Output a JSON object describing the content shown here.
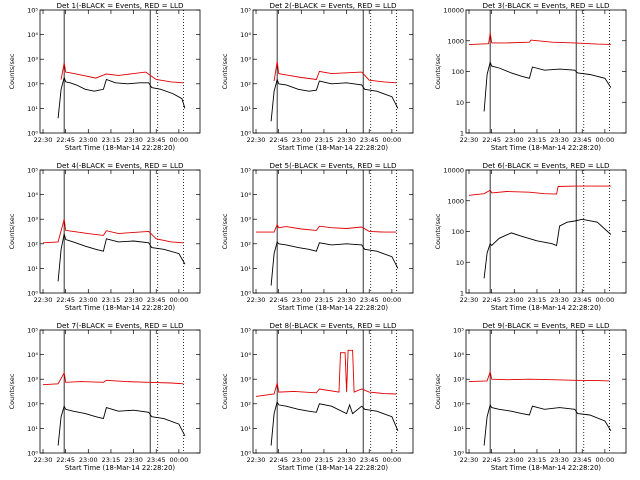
{
  "chart_data": [
    {
      "type": "line",
      "title": "Det 1(-BLACK = Events, RED = LLD",
      "xlabel": "Start Time (18-Mar-14 22:28:20)",
      "ylabel": "Counts/sec",
      "yscale": "log",
      "ylim": [
        1,
        100000
      ],
      "yticks": [
        "10⁰",
        "10¹",
        "10²",
        "10³",
        "10⁴",
        "10⁵"
      ],
      "xlim": [
        "22:28",
        "00:14"
      ],
      "xticks": [
        "22:30",
        "22:45",
        "23:00",
        "23:15",
        "23:30",
        "23:45",
        "00:00"
      ],
      "vlines_solid": [
        "22:44",
        "23:41"
      ],
      "vlines_dotted": [
        "23:46",
        "00:03"
      ],
      "grid": false,
      "series": [
        {
          "name": "Events",
          "color": "#000000",
          "x": [
            "22:40",
            "22:42",
            "22:44",
            "22:45",
            "22:48",
            "22:52",
            "22:58",
            "23:04",
            "23:10",
            "23:12",
            "23:18",
            "23:26",
            "23:34",
            "23:40",
            "23:42",
            "23:48",
            "23:56",
            "00:02",
            "00:04"
          ],
          "values": [
            4,
            60,
            180,
            120,
            110,
            90,
            60,
            50,
            60,
            150,
            110,
            100,
            110,
            110,
            70,
            60,
            40,
            25,
            10
          ]
        },
        {
          "name": "LLD",
          "color": "#e00000",
          "x": [
            "22:42",
            "22:44",
            "22:45",
            "22:48",
            "22:55",
            "23:05",
            "23:12",
            "23:20",
            "23:30",
            "23:38",
            "23:45",
            "23:55",
            "00:03"
          ],
          "values": [
            150,
            700,
            300,
            280,
            230,
            170,
            250,
            220,
            260,
            300,
            150,
            120,
            110
          ]
        }
      ]
    },
    {
      "type": "line",
      "title": "Det 2(-BLACK = Events, RED = LLD",
      "xlabel": "Start Time (18-Mar-14 22:28:20)",
      "ylabel": "Counts/sec",
      "yscale": "log",
      "ylim": [
        1,
        100000
      ],
      "yticks": [
        "10⁰",
        "10¹",
        "10²",
        "10³",
        "10⁴",
        "10⁵"
      ],
      "xlim": [
        "22:28",
        "00:14"
      ],
      "xticks": [
        "22:30",
        "22:45",
        "23:00",
        "23:15",
        "23:30",
        "23:45",
        "00:00"
      ],
      "vlines_solid": [
        "22:44",
        "23:41"
      ],
      "vlines_dotted": [
        "23:46",
        "00:03"
      ],
      "grid": false,
      "series": [
        {
          "name": "Events",
          "color": "#000000",
          "x": [
            "22:40",
            "22:42",
            "22:44",
            "22:45",
            "22:50",
            "22:58",
            "23:05",
            "23:10",
            "23:12",
            "23:20",
            "23:30",
            "23:40",
            "23:42",
            "23:50",
            "00:00",
            "00:04"
          ],
          "values": [
            3,
            50,
            150,
            100,
            90,
            60,
            50,
            55,
            130,
            100,
            110,
            90,
            60,
            50,
            30,
            10
          ]
        },
        {
          "name": "LLD",
          "color": "#e00000",
          "x": [
            "22:42",
            "22:44",
            "22:45",
            "22:50",
            "23:00",
            "23:10",
            "23:12",
            "23:20",
            "23:30",
            "23:40",
            "23:45",
            "23:55",
            "00:03"
          ],
          "values": [
            130,
            800,
            260,
            230,
            180,
            150,
            320,
            260,
            280,
            300,
            140,
            120,
            110
          ]
        }
      ]
    },
    {
      "type": "line",
      "title": "Det 3(-BLACK = Events, RED = LLD",
      "xlabel": "Start Time (18-Mar-14 22:28:20)",
      "ylabel": "Counts/sec",
      "yscale": "log",
      "ylim": [
        1,
        10000
      ],
      "yticks": [
        "1",
        "10",
        "100",
        "1000",
        "10000"
      ],
      "xlim": [
        "22:28",
        "00:14"
      ],
      "xticks": [
        "22:30",
        "22:45",
        "23:00",
        "23:15",
        "23:30",
        "23:45",
        "00:00"
      ],
      "vlines_solid": [
        "22:44",
        "23:41"
      ],
      "vlines_dotted": [
        "23:46",
        "00:03"
      ],
      "grid": false,
      "series": [
        {
          "name": "Events",
          "color": "#000000",
          "x": [
            "22:40",
            "22:42",
            "22:44",
            "22:45",
            "22:50",
            "22:58",
            "23:05",
            "23:10",
            "23:12",
            "23:20",
            "23:30",
            "23:40",
            "23:42",
            "23:50",
            "00:00",
            "00:04"
          ],
          "values": [
            5,
            80,
            200,
            150,
            130,
            90,
            70,
            60,
            140,
            110,
            120,
            110,
            90,
            80,
            60,
            30
          ]
        },
        {
          "name": "LLD",
          "color": "#e00000",
          "x": [
            "22:30",
            "22:43",
            "22:44",
            "22:45",
            "22:55",
            "23:10",
            "23:11",
            "23:25",
            "23:40",
            "23:55",
            "00:04"
          ],
          "values": [
            750,
            800,
            1800,
            850,
            850,
            900,
            1050,
            900,
            850,
            780,
            760
          ]
        }
      ]
    },
    {
      "type": "line",
      "title": "Det 4(-BLACK = Events, RED = LLD",
      "xlabel": "Start Time (18-Mar-14 22:28:20)",
      "ylabel": "Counts/sec",
      "yscale": "log",
      "ylim": [
        1,
        100000
      ],
      "yticks": [
        "10⁰",
        "10¹",
        "10²",
        "10³",
        "10⁴",
        "10⁵"
      ],
      "xlim": [
        "22:28",
        "00:14"
      ],
      "xticks": [
        "22:30",
        "22:45",
        "23:00",
        "23:15",
        "23:30",
        "23:45",
        "00:00"
      ],
      "vlines_solid": [
        "22:44",
        "23:41"
      ],
      "vlines_dotted": [
        "23:46",
        "00:03"
      ],
      "grid": false,
      "series": [
        {
          "name": "Events",
          "color": "#000000",
          "x": [
            "22:40",
            "22:42",
            "22:44",
            "22:45",
            "22:50",
            "22:58",
            "23:05",
            "23:10",
            "23:12",
            "23:20",
            "23:30",
            "23:40",
            "23:42",
            "23:50",
            "00:00",
            "00:04"
          ],
          "values": [
            3,
            60,
            250,
            150,
            120,
            80,
            60,
            50,
            160,
            120,
            130,
            110,
            70,
            60,
            40,
            15
          ]
        },
        {
          "name": "LLD",
          "color": "#e00000",
          "x": [
            "22:30",
            "22:40",
            "22:44",
            "22:45",
            "22:50",
            "23:00",
            "23:10",
            "23:12",
            "23:20",
            "23:30",
            "23:40",
            "23:45",
            "23:55",
            "00:03"
          ],
          "values": [
            110,
            120,
            1000,
            350,
            320,
            260,
            220,
            340,
            260,
            290,
            320,
            160,
            120,
            110
          ]
        }
      ]
    },
    {
      "type": "line",
      "title": "Det 5(-BLACK = Events, RED = LLD",
      "xlabel": "Start Time (18-Mar-14 22:28:20)",
      "ylabel": "Counts/sec",
      "yscale": "log",
      "ylim": [
        1,
        100000
      ],
      "yticks": [
        "10⁰",
        "10¹",
        "10²",
        "10³",
        "10⁴",
        "10⁵"
      ],
      "xlim": [
        "22:28",
        "00:14"
      ],
      "xticks": [
        "22:30",
        "22:45",
        "23:00",
        "23:15",
        "23:30",
        "23:45",
        "00:00"
      ],
      "vlines_solid": [
        "22:44",
        "23:41"
      ],
      "vlines_dotted": [
        "23:46",
        "00:03"
      ],
      "grid": false,
      "series": [
        {
          "name": "Events",
          "color": "#000000",
          "x": [
            "22:40",
            "22:42",
            "22:44",
            "22:45",
            "22:50",
            "22:58",
            "23:05",
            "23:10",
            "23:12",
            "23:20",
            "23:30",
            "23:40",
            "23:42",
            "23:50",
            "00:00",
            "00:04"
          ],
          "values": [
            2,
            40,
            120,
            100,
            90,
            70,
            60,
            50,
            110,
            90,
            100,
            90,
            60,
            50,
            30,
            10
          ]
        },
        {
          "name": "LLD",
          "color": "#e00000",
          "x": [
            "22:30",
            "22:42",
            "22:44",
            "22:45",
            "22:50",
            "23:00",
            "23:10",
            "23:12",
            "23:20",
            "23:30",
            "23:40",
            "23:45",
            "23:55",
            "00:03"
          ],
          "values": [
            300,
            300,
            600,
            450,
            500,
            400,
            350,
            520,
            450,
            420,
            480,
            320,
            300,
            300
          ]
        }
      ]
    },
    {
      "type": "line",
      "title": "Det 6(-BLACK = Events, RED = LLD",
      "xlabel": "Start Time (18-Mar-14 22:28:20)",
      "ylabel": "Counts/sec",
      "yscale": "log",
      "ylim": [
        1,
        10000
      ],
      "yticks": [
        "1",
        "10",
        "100",
        "1000",
        "10000"
      ],
      "xlim": [
        "22:28",
        "00:14"
      ],
      "xticks": [
        "22:30",
        "22:45",
        "23:00",
        "23:15",
        "23:30",
        "23:45",
        "00:00"
      ],
      "vlines_solid": [
        "22:44",
        "23:41"
      ],
      "vlines_dotted": [
        "23:46",
        "00:03"
      ],
      "grid": false,
      "series": [
        {
          "name": "Events",
          "color": "#000000",
          "x": [
            "22:40",
            "22:42",
            "22:44",
            "22:45",
            "22:50",
            "22:58",
            "23:05",
            "23:15",
            "23:25",
            "23:28",
            "23:30",
            "23:35",
            "23:40",
            "23:45",
            "23:55",
            "00:04"
          ],
          "values": [
            3,
            20,
            40,
            35,
            60,
            90,
            70,
            50,
            40,
            35,
            150,
            200,
            220,
            250,
            200,
            80
          ]
        },
        {
          "name": "LLD",
          "color": "#e00000",
          "x": [
            "22:30",
            "22:40",
            "22:44",
            "22:45",
            "22:55",
            "23:10",
            "23:20",
            "23:28",
            "23:29",
            "23:40",
            "23:55",
            "00:04"
          ],
          "values": [
            1500,
            1700,
            2200,
            1800,
            2000,
            1900,
            1700,
            1650,
            2900,
            3000,
            3000,
            3000
          ]
        }
      ]
    },
    {
      "type": "line",
      "title": "Det 7(-BLACK = Events, RED = LLD",
      "xlabel": "Start Time (18-Mar-14 22:28:20)",
      "ylabel": "Counts/sec",
      "yscale": "log",
      "ylim": [
        1,
        100000
      ],
      "yticks": [
        "10⁰",
        "10¹",
        "10²",
        "10³",
        "10⁴",
        "10⁵"
      ],
      "xlim": [
        "22:28",
        "00:14"
      ],
      "xticks": [
        "22:30",
        "22:45",
        "23:00",
        "23:15",
        "23:30",
        "23:45",
        "00:00"
      ],
      "vlines_solid": [
        "22:44",
        "23:41"
      ],
      "vlines_dotted": [
        "23:46",
        "00:03"
      ],
      "grid": false,
      "series": [
        {
          "name": "Events",
          "color": "#000000",
          "x": [
            "22:40",
            "22:42",
            "22:44",
            "22:45",
            "22:50",
            "22:58",
            "23:05",
            "23:10",
            "23:12",
            "23:20",
            "23:30",
            "23:40",
            "23:42",
            "23:50",
            "00:00",
            "00:04"
          ],
          "values": [
            2,
            30,
            80,
            60,
            50,
            40,
            30,
            25,
            70,
            50,
            55,
            45,
            30,
            25,
            15,
            5
          ]
        },
        {
          "name": "LLD",
          "color": "#e00000",
          "x": [
            "22:30",
            "22:40",
            "22:44",
            "22:45",
            "22:55",
            "23:10",
            "23:12",
            "23:25",
            "23:40",
            "23:55",
            "00:03"
          ],
          "values": [
            600,
            650,
            1800,
            750,
            800,
            750,
            900,
            800,
            750,
            700,
            650
          ]
        }
      ]
    },
    {
      "type": "line",
      "title": "Det 8(-BLACK = Events, RED = LLD",
      "xlabel": "Start Time (18-Mar-14 22:28:20)",
      "ylabel": "Counts/sec",
      "yscale": "log",
      "ylim": [
        1,
        100000
      ],
      "yticks": [
        "10⁰",
        "10¹",
        "10²",
        "10³",
        "10⁴",
        "10⁵"
      ],
      "xlim": [
        "22:28",
        "00:14"
      ],
      "xticks": [
        "22:30",
        "22:45",
        "23:00",
        "23:15",
        "23:30",
        "23:45",
        "00:00"
      ],
      "vlines_solid": [
        "22:44",
        "23:41"
      ],
      "vlines_dotted": [
        "23:46",
        "00:03"
      ],
      "grid": false,
      "series": [
        {
          "name": "Events",
          "color": "#000000",
          "x": [
            "22:40",
            "22:42",
            "22:44",
            "22:45",
            "22:50",
            "22:58",
            "23:05",
            "23:10",
            "23:12",
            "23:20",
            "23:30",
            "23:32",
            "23:34",
            "23:40",
            "23:42",
            "23:50",
            "00:00",
            "00:04"
          ],
          "values": [
            2,
            40,
            120,
            90,
            80,
            60,
            50,
            45,
            100,
            80,
            40,
            90,
            40,
            80,
            60,
            50,
            30,
            8
          ]
        },
        {
          "name": "LLD",
          "color": "#e00000",
          "x": [
            "22:30",
            "22:42",
            "22:44",
            "22:45",
            "22:55",
            "23:10",
            "23:12",
            "23:25",
            "23:26",
            "23:29",
            "23:30",
            "23:31",
            "23:34",
            "23:35",
            "23:40",
            "23:45",
            "23:55",
            "00:03"
          ],
          "values": [
            200,
            250,
            700,
            300,
            320,
            280,
            400,
            300,
            12000,
            12000,
            300,
            15000,
            15000,
            300,
            400,
            300,
            260,
            250
          ]
        }
      ]
    },
    {
      "type": "line",
      "title": "Det 9(-BLACK = Events, RED = LLD",
      "xlabel": "Start Time (18-Mar-14 22:28:20)",
      "ylabel": "Counts/sec",
      "yscale": "log",
      "ylim": [
        1,
        100000
      ],
      "yticks": [
        "10⁰",
        "10¹",
        "10²",
        "10³",
        "10⁴",
        "10⁵"
      ],
      "xlim": [
        "22:28",
        "00:14"
      ],
      "xticks": [
        "22:30",
        "22:45",
        "23:00",
        "23:15",
        "23:30",
        "23:45",
        "00:00"
      ],
      "vlines_solid": [
        "22:44",
        "23:41"
      ],
      "vlines_dotted": [
        "23:46",
        "00:03"
      ],
      "grid": false,
      "series": [
        {
          "name": "Events",
          "color": "#000000",
          "x": [
            "22:40",
            "22:42",
            "22:44",
            "22:45",
            "22:50",
            "22:58",
            "23:05",
            "23:10",
            "23:12",
            "23:20",
            "23:30",
            "23:40",
            "23:42",
            "23:50",
            "00:00",
            "00:04"
          ],
          "values": [
            2,
            30,
            90,
            70,
            60,
            50,
            40,
            35,
            80,
            60,
            70,
            60,
            40,
            35,
            20,
            8
          ]
        },
        {
          "name": "LLD",
          "color": "#e00000",
          "x": [
            "22:30",
            "22:42",
            "22:44",
            "22:45",
            "22:55",
            "23:10",
            "23:25",
            "23:40",
            "23:55",
            "00:03"
          ],
          "values": [
            800,
            850,
            2000,
            1000,
            950,
            1000,
            950,
            900,
            880,
            850
          ]
        }
      ]
    }
  ]
}
